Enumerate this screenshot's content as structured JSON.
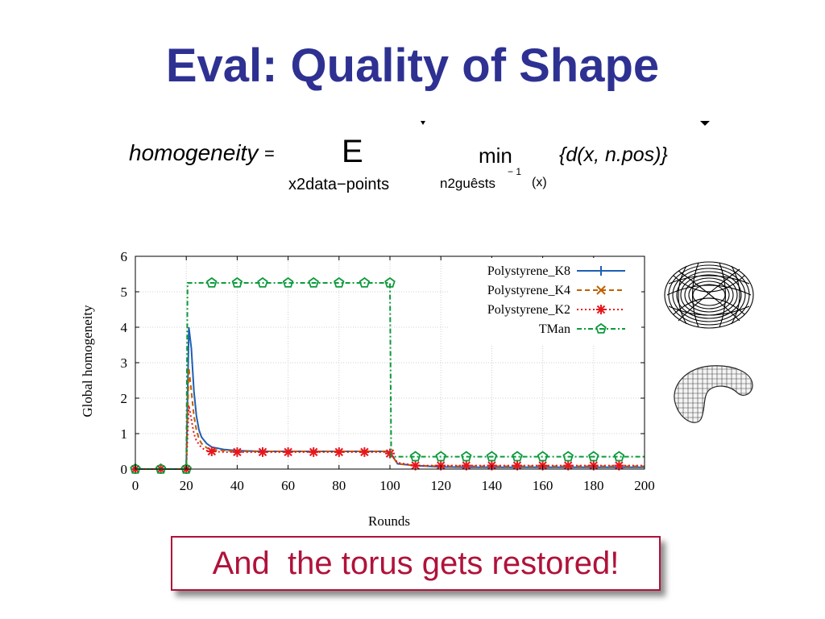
{
  "slide": {
    "title": "Eval: Quality of Shape",
    "caption": "And  the torus gets restored!"
  },
  "formula": {
    "lhs": "homogeneity",
    "equals": "=",
    "operator": "E",
    "operator_sub": "x2data−points",
    "min": "min",
    "min_sub": "n2guêsts",
    "min_sub_sup": "− 1",
    "min_sub_arg": "(x)",
    "body": "{d(x, n.pos)}"
  },
  "chart_data": {
    "type": "line",
    "xlabel": "Rounds",
    "ylabel": "Global homogeneity",
    "xlim": [
      0,
      200
    ],
    "ylim": [
      0,
      6
    ],
    "xticks": [
      0,
      20,
      40,
      60,
      80,
      100,
      120,
      140,
      160,
      180,
      200
    ],
    "yticks": [
      0,
      1,
      2,
      3,
      4,
      5,
      6
    ],
    "grid": true,
    "legend_position": "top-right",
    "series": [
      {
        "name": "Polystyrene_K8",
        "color": "#1f5fb4",
        "dash": "solid",
        "marker": "plus",
        "x": [
          0,
          19,
          20,
          21,
          22,
          23,
          24,
          25,
          26,
          28,
          30,
          35,
          40,
          50,
          60,
          70,
          80,
          90,
          98,
          100,
          103,
          110,
          120,
          130,
          140,
          150,
          160,
          170,
          180,
          190,
          200
        ],
        "y": [
          0,
          0,
          0,
          4.0,
          3.4,
          2.2,
          1.5,
          1.1,
          0.9,
          0.72,
          0.62,
          0.55,
          0.52,
          0.5,
          0.5,
          0.5,
          0.5,
          0.5,
          0.5,
          0.48,
          0.15,
          0.1,
          0.06,
          0.05,
          0.05,
          0.05,
          0.05,
          0.05,
          0.05,
          0.05,
          0.05
        ],
        "markers_x": []
      },
      {
        "name": "Polystyrene_K4",
        "color": "#c06000",
        "dash": "dashed",
        "marker": "x",
        "x": [
          0,
          19,
          20,
          21,
          22,
          23,
          24,
          25,
          26,
          28,
          30,
          35,
          40,
          50,
          60,
          70,
          80,
          90,
          98,
          100,
          103,
          110,
          120,
          130,
          140,
          150,
          160,
          170,
          180,
          190,
          200
        ],
        "y": [
          0,
          0,
          0,
          2.85,
          2.2,
          1.5,
          1.1,
          0.85,
          0.72,
          0.6,
          0.55,
          0.52,
          0.5,
          0.5,
          0.5,
          0.5,
          0.5,
          0.5,
          0.5,
          0.46,
          0.15,
          0.1,
          0.08,
          0.08,
          0.08,
          0.08,
          0.08,
          0.08,
          0.08,
          0.08,
          0.08
        ],
        "markers_x": []
      },
      {
        "name": "Polystyrene_K2",
        "color": "#e8161c",
        "dash": "dotted",
        "marker": "star",
        "x": [
          0,
          19,
          20,
          21,
          22,
          23,
          24,
          25,
          26,
          28,
          30,
          35,
          40,
          50,
          60,
          70,
          80,
          90,
          98,
          100,
          103,
          110,
          120,
          130,
          140,
          150,
          160,
          170,
          180,
          190,
          200
        ],
        "y": [
          0,
          0,
          0,
          1.8,
          1.4,
          1.0,
          0.8,
          0.7,
          0.6,
          0.52,
          0.5,
          0.48,
          0.48,
          0.48,
          0.48,
          0.48,
          0.48,
          0.48,
          0.48,
          0.44,
          0.18,
          0.1,
          0.1,
          0.1,
          0.1,
          0.1,
          0.1,
          0.1,
          0.1,
          0.1,
          0.1
        ],
        "markers_x": [
          0,
          10,
          20,
          30,
          40,
          50,
          60,
          70,
          80,
          90,
          100,
          110,
          120,
          130,
          140,
          150,
          160,
          170,
          180,
          190
        ]
      },
      {
        "name": "TMan",
        "color": "#0c9a3c",
        "dash": "dashdot",
        "marker": "pentagon",
        "x": [
          0,
          20,
          20.5,
          100,
          100.5,
          200
        ],
        "y": [
          0,
          0,
          5.25,
          5.25,
          0.35,
          0.35
        ],
        "markers_x": [
          0,
          10,
          20,
          30,
          40,
          50,
          60,
          70,
          80,
          90,
          100,
          110,
          120,
          130,
          140,
          150,
          160,
          170,
          180,
          190
        ]
      }
    ]
  },
  "images": {
    "torus_wire": "torus-wireframe-icon",
    "torus_mesh": "partial-torus-mesh-icon"
  }
}
